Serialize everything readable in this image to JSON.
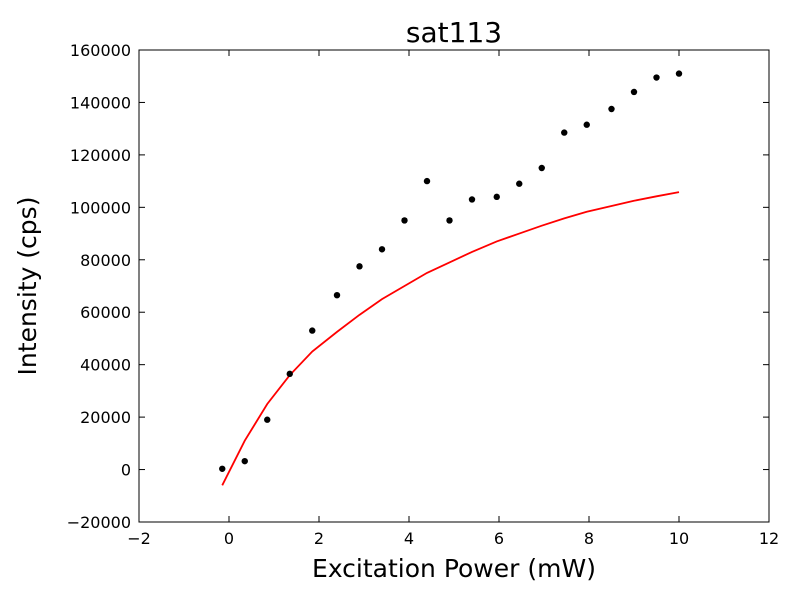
{
  "chart_data": {
    "type": "scatter",
    "title": "sat113",
    "xlabel": "Excitation Power (mW)",
    "ylabel": "Intensity (cps)",
    "xlim": [
      -2,
      12
    ],
    "ylim": [
      -20000,
      160000
    ],
    "x_ticks": [
      "−2",
      "0",
      "2",
      "4",
      "6",
      "8",
      "10",
      "12"
    ],
    "y_ticks": [
      "−20000",
      "0",
      "20000",
      "40000",
      "60000",
      "80000",
      "100000",
      "120000",
      "140000",
      "160000"
    ],
    "grid": false,
    "legend": "none",
    "series": [
      {
        "type": "scatter",
        "color": "#000000",
        "x": [
          -0.15,
          0.35,
          0.85,
          1.35,
          1.85,
          2.4,
          2.9,
          3.4,
          3.9,
          4.4,
          4.9,
          5.4,
          5.95,
          6.45,
          6.95,
          7.45,
          7.95,
          8.5,
          9.0,
          9.5,
          10.0
        ],
        "y": [
          300,
          3200,
          19000,
          36500,
          53000,
          66500,
          77500,
          84000,
          95000,
          110000,
          95000,
          103000,
          104000,
          109000,
          115000,
          128500,
          131500,
          137500,
          144000,
          149500,
          151000
        ]
      },
      {
        "type": "line",
        "color": "#ff0000",
        "x": [
          -0.15,
          0.35,
          0.85,
          1.35,
          1.85,
          2.4,
          2.9,
          3.4,
          3.9,
          4.4,
          4.9,
          5.4,
          5.95,
          6.45,
          6.95,
          7.45,
          7.95,
          8.5,
          9.0,
          9.5,
          10.0
        ],
        "y": [
          -6000,
          11000,
          25000,
          36000,
          45000,
          52500,
          59000,
          65000,
          70000,
          75000,
          79000,
          83000,
          87000,
          90000,
          93000,
          95800,
          98300,
          100500,
          102500,
          104200,
          105800
        ]
      }
    ]
  }
}
